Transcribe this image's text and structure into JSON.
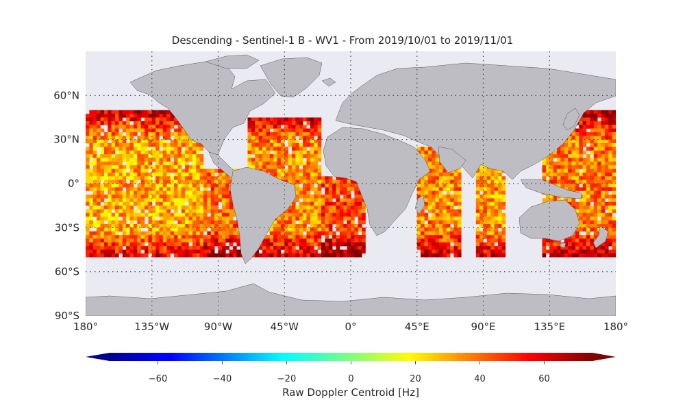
{
  "title": "Descending - Sentinel-1 B - WV1 - From 2019/10/01 to 2019/11/01",
  "map": {
    "projection": "PlateCarree",
    "lon_range": [
      -180,
      180
    ],
    "lat_range": [
      -90,
      90
    ],
    "ocean_color": "#eaeaf2",
    "land_color": "#bdbdc3",
    "grid": true,
    "lon_ticks": [
      {
        "value": -180,
        "label": "180°"
      },
      {
        "value": -135,
        "label": "135°W"
      },
      {
        "value": -90,
        "label": "90°W"
      },
      {
        "value": -45,
        "label": "45°W"
      },
      {
        "value": 0,
        "label": "0°"
      },
      {
        "value": 45,
        "label": "45°E"
      },
      {
        "value": 90,
        "label": "90°E"
      },
      {
        "value": 135,
        "label": "135°E"
      },
      {
        "value": 180,
        "label": "180°"
      }
    ],
    "lat_ticks": [
      {
        "value": 60,
        "label": "60°N"
      },
      {
        "value": 30,
        "label": "30°N"
      },
      {
        "value": 0,
        "label": "0°"
      },
      {
        "value": -30,
        "label": "30°S"
      },
      {
        "value": -60,
        "label": "60°S"
      },
      {
        "value": -90,
        "label": "90°S"
      }
    ]
  },
  "chart_data": {
    "type": "heatmap",
    "title": "Descending - Sentinel-1 B - WV1 - From 2019/10/01 to 2019/11/01",
    "xlim": [
      -180,
      180
    ],
    "ylim": [
      -90,
      90
    ],
    "data_lat_range": [
      -50,
      50
    ],
    "colormap": "jet",
    "colorbar_label": "Raw Doppler Centroid [Hz]",
    "vmin": -75,
    "vmax": 75,
    "extend": "both",
    "regions": [
      {
        "lon": [
          -180,
          -100
        ],
        "lat": [
          -50,
          50
        ],
        "typical_value": 25
      },
      {
        "lon": [
          -100,
          -70
        ],
        "lat": [
          -50,
          10
        ],
        "typical_value": 35
      },
      {
        "lon": [
          -70,
          -20
        ],
        "lat": [
          -50,
          45
        ],
        "typical_value": 30
      },
      {
        "lon": [
          -20,
          10
        ],
        "lat": [
          -50,
          5
        ],
        "typical_value": 40
      },
      {
        "lon": [
          45,
          75
        ],
        "lat": [
          -50,
          25
        ],
        "typical_value": 30
      },
      {
        "lon": [
          85,
          105
        ],
        "lat": [
          -50,
          15
        ],
        "typical_value": 28
      },
      {
        "lon": [
          130,
          180
        ],
        "lat": [
          -50,
          50
        ],
        "typical_value": 32
      }
    ]
  },
  "colorbar": {
    "label": "Raw Doppler Centroid [Hz]",
    "ticks": [
      {
        "value": -60,
        "label": "−60"
      },
      {
        "value": -40,
        "label": "−40"
      },
      {
        "value": -20,
        "label": "−20"
      },
      {
        "value": 0,
        "label": "0"
      },
      {
        "value": 20,
        "label": "20"
      },
      {
        "value": 40,
        "label": "40"
      },
      {
        "value": 60,
        "label": "60"
      }
    ]
  }
}
